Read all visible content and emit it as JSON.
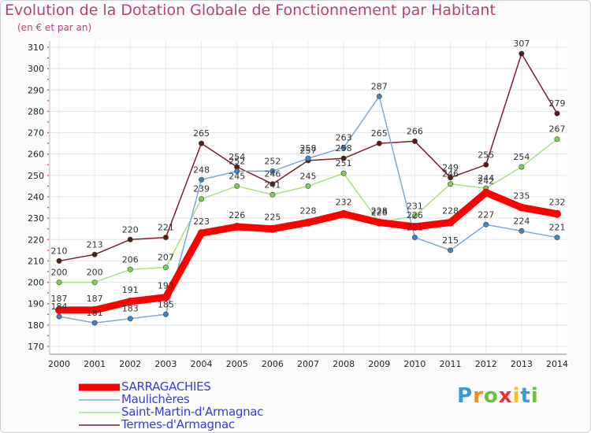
{
  "chart_data": {
    "type": "line",
    "title": "Evolution de la Dotation Globale de Fonctionnement par Habitant",
    "subtitle": "(en € et par an)",
    "xlabel": "",
    "ylabel": "",
    "x": [
      2000,
      2001,
      2002,
      2003,
      2004,
      2005,
      2006,
      2007,
      2008,
      2009,
      2010,
      2011,
      2012,
      2013,
      2014
    ],
    "ylim": [
      170,
      310
    ],
    "yticks": [
      170,
      180,
      190,
      200,
      210,
      220,
      230,
      240,
      250,
      260,
      270,
      280,
      290,
      300,
      310
    ],
    "series": [
      {
        "name": "Termes-d'Armagnac",
        "color": "#7a1f2b",
        "marker": "#5a1a14",
        "values": [
          210,
          213,
          220,
          221,
          265,
          254,
          246,
          257,
          258,
          265,
          266,
          249,
          255,
          307,
          279
        ]
      },
      {
        "name": "Saint-Martin-d'Armagnac",
        "color": "#a8e080",
        "marker": "#7ed050",
        "values": [
          200,
          200,
          206,
          207,
          239,
          245,
          241,
          245,
          251,
          228,
          231,
          246,
          244,
          254,
          267
        ]
      },
      {
        "name": "Maulichères",
        "color": "#7aaad6",
        "marker": "#3a86c8",
        "values": [
          184,
          181,
          183,
          185,
          248,
          252,
          252,
          258,
          263,
          287,
          221,
          215,
          227,
          224,
          221
        ]
      },
      {
        "name": "SARRAGACHIES",
        "color": "#ff0000",
        "marker": "#ff0000",
        "values": [
          187,
          187,
          191,
          193,
          223,
          226,
          225,
          228,
          232,
          228,
          226,
          228,
          242,
          235,
          232
        ]
      }
    ],
    "legend_position": "bottom-left"
  },
  "legend": [
    {
      "name": "SARRAGACHIES",
      "color": "#ff0000"
    },
    {
      "name": "Maulichères",
      "color": "#7aaad6"
    },
    {
      "name": "Saint-Martin-d'Armagnac",
      "color": "#a8e080"
    },
    {
      "name": "Termes-d'Armagnac",
      "color": "#7a1f2b"
    }
  ],
  "logo": {
    "text": "Proxiti",
    "letters": [
      "P",
      "r",
      "o",
      "x",
      "i",
      "t",
      "i"
    ],
    "colors": [
      "#3a9bd6",
      "#f08a1c",
      "#6dbf3c",
      "#e8303a",
      "#f2c41a",
      "#3a9bd6",
      "#6dbf3c"
    ]
  }
}
